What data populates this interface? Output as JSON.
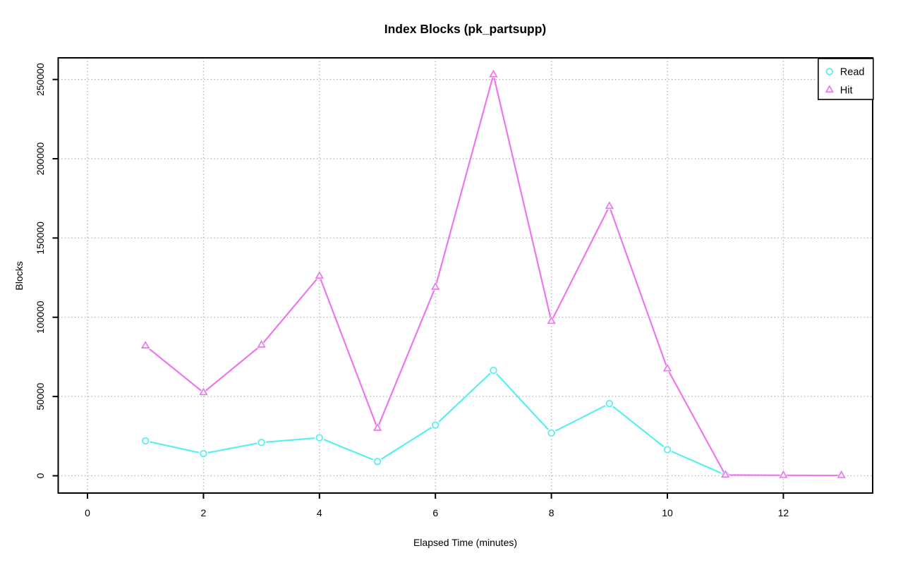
{
  "page": {
    "background": "#ffffff"
  },
  "chart_data": {
    "type": "line",
    "title": "Index Blocks (pk_partsupp)",
    "xlabel": "Elapsed Time (minutes)",
    "ylabel": "Blocks",
    "x_ticks": [
      0,
      2,
      4,
      6,
      8,
      10,
      12
    ],
    "y_ticks": [
      0,
      50000,
      100000,
      150000,
      200000,
      250000
    ],
    "y_tick_labels": [
      "0",
      "50000",
      "100000",
      "150000",
      "200000",
      "250000"
    ],
    "xlim": [
      -0.505,
      13.54
    ],
    "ylim": [
      -10900,
      263650
    ],
    "grid": true,
    "grid_color": "#a9a9a9",
    "axis_color": "#000000",
    "background_color": "#ffffff",
    "legend_position": "topright",
    "series": [
      {
        "name": "Read",
        "color": "#58efef",
        "marker": "circle",
        "x": [
          1,
          2,
          3,
          4,
          5,
          6,
          7,
          8,
          9,
          10,
          11
        ],
        "values": [
          22000,
          14000,
          21000,
          24000,
          9000,
          32000,
          66500,
          27000,
          45500,
          16500,
          500
        ]
      },
      {
        "name": "Hit",
        "color": "#ee76ec",
        "marker": "triangle",
        "x": [
          1,
          2,
          3,
          4,
          5,
          6,
          7,
          8,
          9,
          10,
          11,
          12,
          13
        ],
        "values": [
          82000,
          52500,
          82500,
          126000,
          30000,
          119000,
          253000,
          97500,
          170000,
          67500,
          500,
          300,
          200
        ]
      }
    ]
  }
}
